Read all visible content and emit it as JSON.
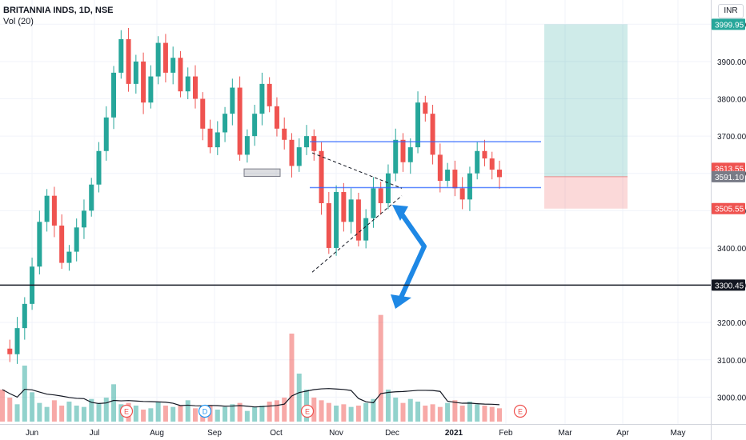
{
  "header": {
    "symbol": "BRITANNIA INDS, 1D, NSE",
    "volume_label": "Vol (20)",
    "currency_badge": "INR"
  },
  "chart_data": {
    "type": "candlestick",
    "x_tick_labels": [
      "Jun",
      "Jul",
      "Aug",
      "Sep",
      "Oct",
      "Nov",
      "Dec",
      "2021",
      "Feb",
      "Mar",
      "Apr",
      "May"
    ],
    "y_tick_labels": [
      "4000.00",
      "3900.00",
      "3800.00",
      "3700.00",
      "3600.00",
      "3500.00",
      "3400.00",
      "3300.00",
      "3200.00",
      "3100.00",
      "3000.00"
    ],
    "y_ticks": [
      4000,
      3900,
      3800,
      3700,
      3600,
      3500,
      3400,
      3300,
      3200,
      3100,
      3000
    ],
    "ylim": [
      2945,
      4050
    ],
    "price_tags": [
      {
        "label": "3999.95",
        "value": 3999.95,
        "color": "#26a69a"
      },
      {
        "label": "3613.55",
        "value": 3613.55,
        "color": "#ef5350"
      },
      {
        "label": "3591.10",
        "value": 3591.1,
        "color": "#787b86"
      },
      {
        "label": "3505.55",
        "value": 3505.55,
        "color": "#ef5350"
      },
      {
        "label": "3300.45",
        "value": 3300.45,
        "color": "#131722"
      }
    ],
    "horizontal_line": 3300.45,
    "channel_lines": [
      3685,
      3562
    ],
    "position_box": {
      "entry": 3591.1,
      "target": 3999.95,
      "stop": 3505.55
    },
    "event_markers": [
      "E",
      "E",
      "D",
      "E",
      "E"
    ],
    "candle_path": [
      3130,
      3115,
      3185,
      3250,
      3350,
      3470,
      3540,
      3460,
      3360,
      3390,
      3455,
      3500,
      3570,
      3660,
      3750,
      3870,
      3960,
      3840,
      3900,
      3790,
      3860,
      3950,
      3870,
      3910,
      3820,
      3860,
      3800,
      3720,
      3670,
      3710,
      3760,
      3830,
      3650,
      3700,
      3760,
      3840,
      3780,
      3720,
      3690,
      3620,
      3670,
      3700,
      3660,
      3520,
      3400,
      3550,
      3470,
      3530,
      3420,
      3480,
      3560,
      3520,
      3600,
      3690,
      3630,
      3670,
      3790,
      3760,
      3650,
      3580,
      3610,
      3560,
      3530,
      3600,
      3660,
      3640,
      3610,
      3590
    ],
    "volume_path": [
      120,
      90,
      65,
      210,
      110,
      70,
      55,
      80,
      60,
      75,
      60,
      55,
      85,
      70,
      90,
      140,
      65,
      70,
      60,
      45,
      50,
      75,
      60,
      55,
      60,
      80,
      50,
      55,
      60,
      45,
      55,
      65,
      70,
      40,
      55,
      60,
      75,
      80,
      90,
      330,
      180,
      120,
      90,
      80,
      70,
      60,
      65,
      55,
      60,
      70,
      85,
      400,
      120,
      90,
      70,
      85,
      75,
      60,
      65,
      55,
      70,
      80,
      60,
      75,
      65,
      60,
      55,
      50
    ]
  }
}
